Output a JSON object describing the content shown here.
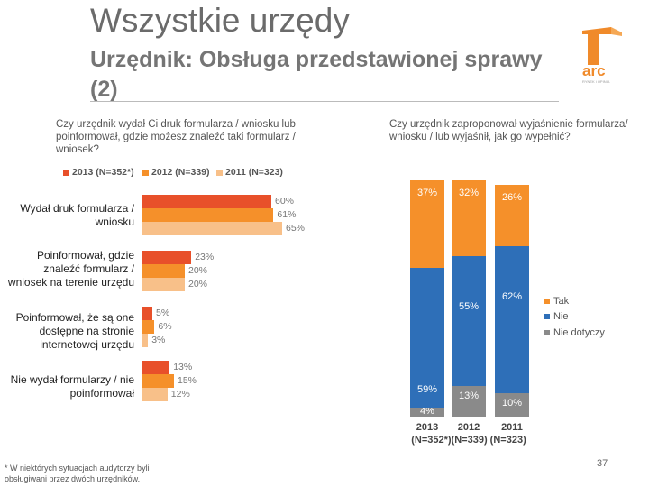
{
  "title": "Wszystkie urzędy",
  "subtitle": "Urzędnik: Obsługa przedstawionej sprawy (2)",
  "logo": {
    "text": "arc",
    "subtext": "RYNEK i OPINIA"
  },
  "colors": {
    "y2013": "#e8502a",
    "y2012": "#f5902a",
    "y2011": "#f8c089",
    "tak": "#f5902a",
    "nie": "#2e6fb8",
    "nie_dotyczy": "#8a8a8a"
  },
  "chart_data": [
    {
      "type": "bar",
      "orientation": "horizontal",
      "title": "Czy urzędnik wydał Ci druk formularza / wniosku lub poinformował, gdzie możesz znaleźć taki formularz / wniosek?",
      "legend": [
        "2013 (N=352*)",
        "2012 (N=339)",
        "2011 (N=323)"
      ],
      "categories": [
        "Wydał druk formularza / wniosku",
        "Poinformował, gdzie znaleźć formularz / wniosek na terenie urzędu",
        "Poinformował, że są one dostępne na stronie internetowej urzędu",
        "Nie wydał formularzy / nie poinformował"
      ],
      "series": [
        {
          "name": "2013 (N=352*)",
          "values": [
            60,
            23,
            5,
            13
          ],
          "labels": [
            "60%",
            "23%",
            "5%",
            "13%"
          ]
        },
        {
          "name": "2012 (N=339)",
          "values": [
            61,
            20,
            6,
            15
          ],
          "labels": [
            "61%",
            "20%",
            "6%",
            "15%"
          ]
        },
        {
          "name": "2011 (N=323)",
          "values": [
            65,
            20,
            3,
            12
          ],
          "labels": [
            "65%",
            "20%",
            "3%",
            "12%"
          ]
        }
      ],
      "xlim": [
        0,
        100
      ]
    },
    {
      "type": "bar",
      "orientation": "vertical",
      "stacked": true,
      "title": "Czy urzędnik zaproponował wyjaśnienie formularza/ wniosku / lub wyjaśnił, jak go wypełnić?",
      "categories": [
        "2013",
        "2012",
        "2011"
      ],
      "category_sublabel": "(N=352*)(N=339) (N=323)",
      "legend": [
        "Tak",
        "Nie",
        "Nie dotyczy"
      ],
      "series": [
        {
          "name": "Nie dotyczy",
          "values": [
            4,
            13,
            10
          ],
          "labels": [
            "4%",
            "13%",
            "10%"
          ]
        },
        {
          "name": "Nie",
          "values": [
            59,
            55,
            62
          ],
          "labels": [
            "59%",
            "55%",
            "62%"
          ]
        },
        {
          "name": "Tak",
          "values": [
            37,
            32,
            26
          ],
          "labels": [
            "37%",
            "32%",
            "26%"
          ]
        }
      ],
      "ylim": [
        0,
        100
      ]
    }
  ],
  "footnote": "* W niektórych sytuacjach audytorzy byli obsługiwani przez dwóch urzędników.",
  "page_number": "37"
}
